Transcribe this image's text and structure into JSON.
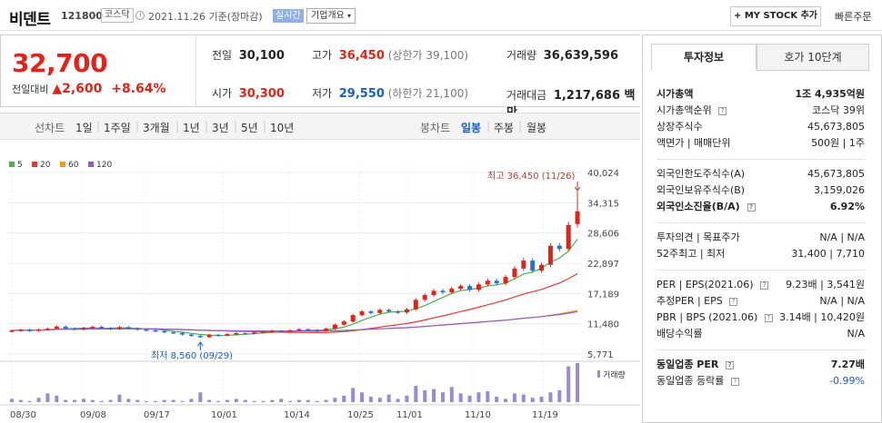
{
  "header": {
    "name": "비덴트",
    "code": "121800",
    "market": "코스닥",
    "date": "2021.11.26 기준(장마감)",
    "realtime": "실시간",
    "corp_info": "기업개요",
    "my_stock": "+ MY STOCK 추가",
    "quick_order": "빠른주문"
  },
  "price": {
    "current": "32,700",
    "change_label": "전일대비",
    "change_arrow": "▲",
    "change": "2,600",
    "rate": "+8.64%",
    "prev_label": "전일",
    "prev": "30,100",
    "open_label": "시가",
    "open": "30,300",
    "high_label": "고가",
    "high": "36,450",
    "upper_limit": "(상한가 39,100)",
    "low_label": "저가",
    "low": "29,550",
    "lower_limit": "(하한가 21,100)",
    "volume_label": "거래량",
    "volume": "36,639,596",
    "amount_label": "거래대금",
    "amount": "1,217,686 백만"
  },
  "tabs": {
    "line_chart": "선차트",
    "periods": [
      "1일",
      "1주일",
      "3개월",
      "1년",
      "3년",
      "5년",
      "10년"
    ],
    "candle_chart": "봉차트",
    "candles": [
      "일봉",
      "주봉",
      "월봉"
    ]
  },
  "right": {
    "tab_active": "투자정보",
    "tab_other": "호가 10단계",
    "rows": [
      {
        "l": "시가총액",
        "r": "1조 4,935억원",
        "bold": true
      },
      {
        "l": "시가총액순위",
        "r": "코스닥 39위"
      },
      {
        "l": "상장주식수",
        "r": "45,673,805"
      },
      {
        "l": "액면가 | 매매단위",
        "r": "500원 | 1주"
      },
      {
        "l": "외국인한도주식수(A)",
        "r": "45,673,805"
      },
      {
        "l": "외국인보유주식수(B)",
        "r": "3,159,026"
      },
      {
        "l": "외국인소진율(B/A)",
        "r": "6.92%",
        "bold": true
      },
      {
        "l": "투자의견 | 목표주가",
        "r": "N/A | N/A"
      },
      {
        "l": "52주최고 | 최저",
        "r": "31,400 | 7,710"
      },
      {
        "l": "PER | EPS(2021.06)",
        "r": "9.23배 | 3,541원"
      },
      {
        "l": "추정PER | EPS",
        "r": "N/A | N/A"
      },
      {
        "l": "PBR | BPS (2021.06)",
        "r": "3.14배 | 10,420원"
      },
      {
        "l": "배당수익률",
        "r": "N/A"
      },
      {
        "l": "동일업종 PER",
        "r": "7.27배",
        "bold": true
      },
      {
        "l": "동일업종 등락률",
        "r": "-0.99%",
        "blue": true
      }
    ]
  },
  "chart_data": {
    "type": "candlestick",
    "legend": [
      {
        "name": "5",
        "color": "#4caf50"
      },
      {
        "name": "20",
        "color": "#e53935"
      },
      {
        "name": "60",
        "color": "#f39c12"
      },
      {
        "name": "120",
        "color": "#8e5bd0"
      }
    ],
    "y_ticks": [
      "40,024",
      "34,315",
      "28,606",
      "22,897",
      "17,189",
      "11,480",
      "5,771"
    ],
    "x_ticks": [
      "08/30",
      "09/08",
      "09/17",
      "10/01",
      "10/14",
      "10/25",
      "11/01",
      "11/10",
      "11/19"
    ],
    "high_label": "최고 36,450 (11/26)",
    "low_label": "최저 8,560 (09/29)",
    "volume_label": "거래량",
    "closes": [
      10200,
      10350,
      10150,
      10400,
      10550,
      10950,
      10600,
      10450,
      10700,
      10900,
      10650,
      10500,
      10850,
      10600,
      10400,
      10250,
      10100,
      9900,
      9750,
      9450,
      9200,
      8950,
      9400,
      9300,
      9550,
      9700,
      9650,
      9850,
      10000,
      10150,
      10050,
      10250,
      10450,
      10300,
      10150,
      10550,
      11300,
      11900,
      13100,
      13800,
      13500,
      14100,
      13800,
      13600,
      14200,
      16000,
      16900,
      17700,
      17400,
      18100,
      18600,
      17900,
      18900,
      19600,
      19100,
      20300,
      21900,
      23400,
      21500,
      22600,
      26200,
      25600,
      30100,
      32700
    ],
    "opens": [
      10050,
      10200,
      10350,
      10150,
      10400,
      10550,
      10950,
      10600,
      10450,
      10700,
      10900,
      10650,
      10500,
      10850,
      10600,
      10400,
      10250,
      10100,
      9900,
      9750,
      9450,
      9200,
      8950,
      9400,
      9300,
      9550,
      9700,
      9650,
      9850,
      10000,
      10150,
      10050,
      10250,
      10450,
      10300,
      10150,
      10550,
      11300,
      11900,
      13100,
      13800,
      13500,
      14100,
      13800,
      13600,
      14200,
      16000,
      16900,
      17700,
      17400,
      18100,
      18600,
      17900,
      18900,
      19600,
      19100,
      20300,
      21900,
      23400,
      21500,
      22600,
      26200,
      25600,
      30300
    ],
    "volumes": [
      3,
      2,
      1,
      4,
      8,
      6,
      2,
      2,
      3,
      2,
      1,
      2,
      7,
      3,
      2,
      1,
      1,
      2,
      2,
      1,
      3,
      9,
      2,
      1,
      2,
      3,
      2,
      1,
      1,
      2,
      3,
      1,
      2,
      2,
      1,
      2,
      4,
      6,
      13,
      9,
      5,
      4,
      7,
      3,
      6,
      15,
      11,
      12,
      9,
      14,
      8,
      6,
      9,
      10,
      5,
      3,
      8,
      7,
      4,
      5,
      9,
      11,
      33,
      36
    ]
  }
}
